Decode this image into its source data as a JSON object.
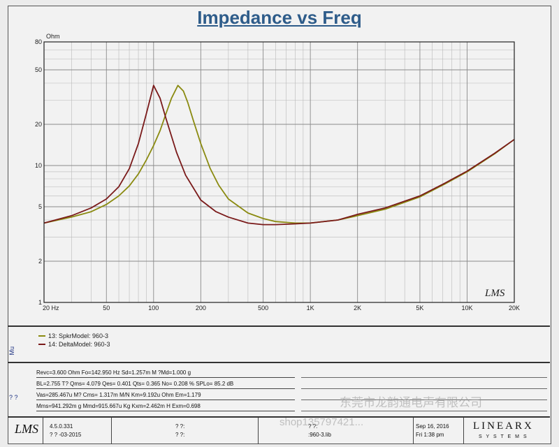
{
  "chart_data": {
    "type": "line",
    "title": "Impedance vs Freq",
    "ylabel": "Ohm",
    "xscale": "log",
    "yscale": "log",
    "xlim": [
      20,
      20000
    ],
    "ylim": [
      1,
      80
    ],
    "grid": true,
    "x_ticks": [
      20,
      50,
      100,
      200,
      500,
      1000,
      2000,
      5000,
      10000,
      20000
    ],
    "x_tick_labels": [
      "20  Hz",
      "50",
      "100",
      "200",
      "500",
      "1K",
      "2K",
      "5K",
      "10K",
      "20K"
    ],
    "y_ticks": [
      1,
      2,
      5,
      10,
      20,
      50,
      80
    ],
    "y_tick_labels": [
      "1",
      "2",
      "5",
      "10",
      "20",
      "50",
      "80"
    ],
    "series": [
      {
        "name": "13: SpkrModel: 960-3",
        "color": "#8a8a10",
        "x": [
          20,
          30,
          40,
          50,
          60,
          70,
          80,
          90,
          100,
          110,
          120,
          130,
          143,
          155,
          165,
          180,
          200,
          230,
          260,
          300,
          400,
          500,
          600,
          800,
          1000,
          1500,
          2000,
          3000,
          5000,
          7000,
          10000,
          15000,
          20000
        ],
        "y": [
          3.8,
          4.2,
          4.6,
          5.2,
          6.0,
          7.1,
          8.7,
          11.0,
          14.0,
          18.0,
          24.0,
          31.0,
          38.5,
          35.0,
          29.0,
          21.0,
          14.5,
          9.5,
          7.2,
          5.7,
          4.5,
          4.1,
          3.9,
          3.8,
          3.8,
          4.0,
          4.3,
          4.8,
          5.9,
          7.2,
          9.0,
          12.2,
          15.5
        ]
      },
      {
        "name": "14: DeltaModel: 960-3",
        "color": "#7a1a1a",
        "x": [
          20,
          30,
          40,
          50,
          60,
          70,
          80,
          90,
          100,
          110,
          120,
          140,
          160,
          200,
          250,
          300,
          400,
          500,
          600,
          800,
          1000,
          1500,
          2000,
          3000,
          5000,
          7000,
          10000,
          15000,
          20000
        ],
        "y": [
          3.8,
          4.3,
          4.9,
          5.7,
          7.0,
          9.5,
          14.5,
          24.0,
          38.5,
          31.0,
          22.0,
          12.5,
          8.5,
          5.6,
          4.6,
          4.2,
          3.8,
          3.7,
          3.7,
          3.75,
          3.8,
          4.0,
          4.4,
          4.9,
          6.0,
          7.3,
          9.1,
          12.3,
          15.5
        ]
      }
    ]
  },
  "logo": "LMS",
  "legend": [
    {
      "label": "13: SpkrModel: 960-3",
      "color": "#8a8a10"
    },
    {
      "label": "14: DeltaModel: 960-3",
      "color": "#7a1a1a"
    }
  ],
  "side_labels": {
    "top": "Mu",
    "bottom": "? ?"
  },
  "params": [
    "Revc=3.600 Ohm  Fo=142.950 Hz  Sd=1.257m M ?Md=1.000 g",
    "BL=2.755 T?  Qms= 4.079  Qes= 0.401  Qts= 0.365  No= 0.208 %  SPLo= 85.2 dB",
    "Vas=285.467u M? Cms= 1.317m M/N  Km=9.192u Ohm  Em=1.179",
    "Mms=941.292m g  Mmd=915.667u Kg  Kxm=2.462m H  Exm=0.698"
  ],
  "footer": {
    "logo": "LMS",
    "version": "4.5.0.331",
    "date_code": "? ? -03-2015",
    "field1": "? ?:",
    "field2": "? ?:",
    "field3": "? ?:",
    "file": ":960-3.lib",
    "date": "Sep 16, 2016",
    "time": "Fri  1:38 pm",
    "brand": "LINEARX",
    "brand_sub": "S Y S T E M S"
  },
  "watermarks": {
    "line1": "东莞市龙韵通电声有限公司",
    "line2": "shop135797421..."
  }
}
